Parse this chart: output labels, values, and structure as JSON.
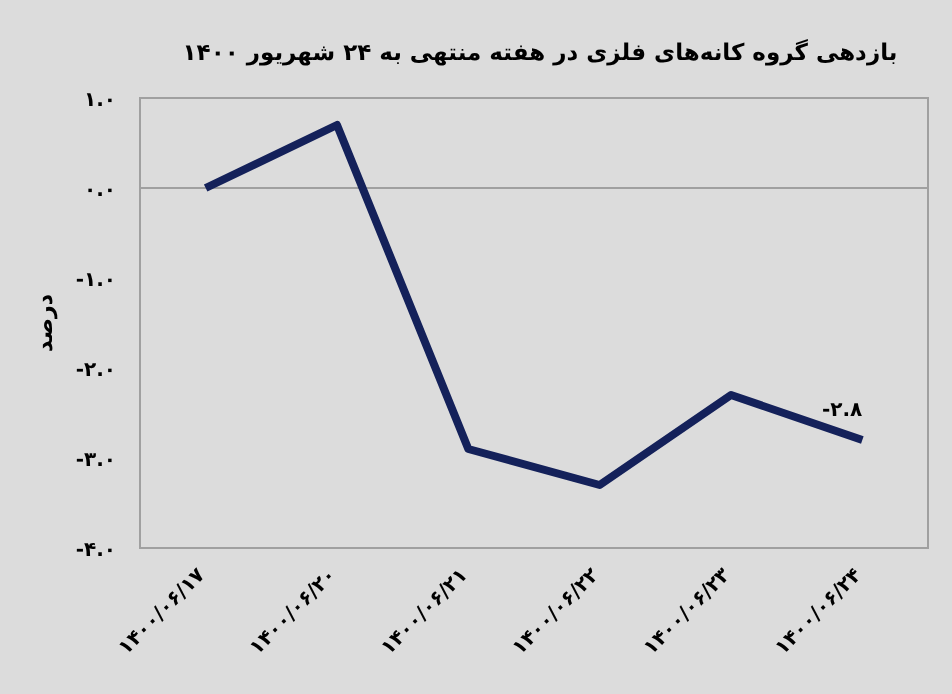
{
  "chart_data": {
    "type": "line",
    "title": "بازدهی گروه کانه‌های فلزی در هفته منتهی به ۲۴ شهریور ۱۴۰۰",
    "ylabel": "درصد",
    "categories": [
      "۱۴۰۰/۰۶/۱۷",
      "۱۴۰۰/۰۶/۲۰",
      "۱۴۰۰/۰۶/۲۱",
      "۱۴۰۰/۰۶/۲۲",
      "۱۴۰۰/۰۶/۲۳",
      "۱۴۰۰/۰۶/۲۴"
    ],
    "series": [
      {
        "color": "#14215a",
        "values": [
          0.0,
          0.7,
          -2.9,
          -3.3,
          -2.3,
          -2.8
        ],
        "value_labels": [
          null,
          null,
          null,
          null,
          null,
          "-۲.۸"
        ]
      }
    ],
    "ylim": [
      -4,
      1
    ],
    "yticks": [
      {
        "value": 1,
        "label": "۱.۰"
      },
      {
        "value": 0,
        "label": "۰.۰"
      },
      {
        "value": -1,
        "label": "-۱.۰"
      },
      {
        "value": -2,
        "label": "-۲.۰"
      },
      {
        "value": -3,
        "label": "-۳.۰"
      },
      {
        "value": -4,
        "label": "-۴.۰"
      }
    ],
    "line_style": "solid"
  }
}
